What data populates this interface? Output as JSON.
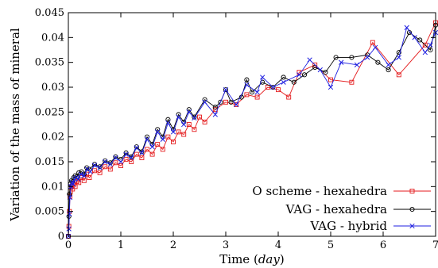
{
  "chart_data": {
    "type": "line",
    "title": "",
    "xlabel": "Time (day)",
    "xlabel_parts": {
      "prefix": "Time (",
      "unit": "day",
      "suffix": ")"
    },
    "ylabel": "Variation of the mass of mineral",
    "xlim": [
      0,
      7
    ],
    "ylim": [
      0,
      0.045
    ],
    "xticks": [
      0,
      1,
      2,
      3,
      4,
      5,
      6,
      7
    ],
    "xtick_labels": [
      "0",
      "1",
      "2",
      "3",
      "4",
      "5",
      "6",
      "7"
    ],
    "yticks": [
      0,
      0.005,
      0.01,
      0.015,
      0.02,
      0.025,
      0.03,
      0.035,
      0.04,
      0.045
    ],
    "ytick_labels": [
      "0",
      "0.005",
      "0.01",
      "0.015",
      "0.02",
      "0.025",
      "0.03",
      "0.035",
      "0.04",
      "0.045"
    ],
    "grid": false,
    "legend_position": "bottom-right",
    "series": [
      {
        "name": "O scheme - hexahedra",
        "color": "#e41a1c",
        "marker": "square",
        "points": [
          [
            0.0,
            0.0
          ],
          [
            0.01,
            0.002
          ],
          [
            0.02,
            0.005
          ],
          [
            0.03,
            0.008
          ],
          [
            0.04,
            0.009
          ],
          [
            0.06,
            0.01
          ],
          [
            0.08,
            0.0095
          ],
          [
            0.1,
            0.0105
          ],
          [
            0.13,
            0.01
          ],
          [
            0.16,
            0.011
          ],
          [
            0.2,
            0.0108
          ],
          [
            0.25,
            0.0118
          ],
          [
            0.3,
            0.0112
          ],
          [
            0.35,
            0.0125
          ],
          [
            0.4,
            0.0118
          ],
          [
            0.5,
            0.0132
          ],
          [
            0.6,
            0.0128
          ],
          [
            0.7,
            0.014
          ],
          [
            0.8,
            0.0135
          ],
          [
            0.9,
            0.0148
          ],
          [
            1.0,
            0.0142
          ],
          [
            1.1,
            0.0155
          ],
          [
            1.2,
            0.015
          ],
          [
            1.3,
            0.0165
          ],
          [
            1.4,
            0.0158
          ],
          [
            1.5,
            0.0175
          ],
          [
            1.6,
            0.0165
          ],
          [
            1.7,
            0.0185
          ],
          [
            1.8,
            0.0175
          ],
          [
            1.9,
            0.02
          ],
          [
            2.0,
            0.019
          ],
          [
            2.1,
            0.021
          ],
          [
            2.2,
            0.0205
          ],
          [
            2.3,
            0.0225
          ],
          [
            2.4,
            0.0215
          ],
          [
            2.5,
            0.024
          ],
          [
            2.6,
            0.023
          ],
          [
            2.8,
            0.0255
          ],
          [
            3.0,
            0.027
          ],
          [
            3.2,
            0.0265
          ],
          [
            3.4,
            0.0285
          ],
          [
            3.6,
            0.028
          ],
          [
            3.8,
            0.03
          ],
          [
            4.0,
            0.0295
          ],
          [
            4.2,
            0.028
          ],
          [
            4.4,
            0.033
          ],
          [
            4.7,
            0.0345
          ],
          [
            5.0,
            0.0315
          ],
          [
            5.4,
            0.031
          ],
          [
            5.8,
            0.039
          ],
          [
            6.3,
            0.0325
          ],
          [
            6.8,
            0.0385
          ],
          [
            7.0,
            0.043
          ]
        ]
      },
      {
        "name": "VAG - hexahedra",
        "color": "#000000",
        "marker": "circle",
        "points": [
          [
            0.0,
            0.0
          ],
          [
            0.01,
            0.004
          ],
          [
            0.02,
            0.0085
          ],
          [
            0.04,
            0.0105
          ],
          [
            0.06,
            0.0112
          ],
          [
            0.08,
            0.011
          ],
          [
            0.1,
            0.0118
          ],
          [
            0.13,
            0.0122
          ],
          [
            0.16,
            0.012
          ],
          [
            0.2,
            0.0128
          ],
          [
            0.25,
            0.013
          ],
          [
            0.3,
            0.0125
          ],
          [
            0.35,
            0.0138
          ],
          [
            0.4,
            0.0135
          ],
          [
            0.5,
            0.0145
          ],
          [
            0.6,
            0.014
          ],
          [
            0.7,
            0.0152
          ],
          [
            0.8,
            0.0148
          ],
          [
            0.9,
            0.016
          ],
          [
            1.0,
            0.0155
          ],
          [
            1.1,
            0.0168
          ],
          [
            1.2,
            0.016
          ],
          [
            1.3,
            0.018
          ],
          [
            1.4,
            0.017
          ],
          [
            1.5,
            0.02
          ],
          [
            1.6,
            0.0185
          ],
          [
            1.7,
            0.0215
          ],
          [
            1.8,
            0.02
          ],
          [
            1.9,
            0.0235
          ],
          [
            2.0,
            0.0215
          ],
          [
            2.1,
            0.0245
          ],
          [
            2.2,
            0.023
          ],
          [
            2.3,
            0.0255
          ],
          [
            2.4,
            0.024
          ],
          [
            2.6,
            0.0275
          ],
          [
            2.8,
            0.026
          ],
          [
            2.9,
            0.027
          ],
          [
            3.0,
            0.0295
          ],
          [
            3.1,
            0.027
          ],
          [
            3.3,
            0.028
          ],
          [
            3.4,
            0.0315
          ],
          [
            3.5,
            0.029
          ],
          [
            3.7,
            0.031
          ],
          [
            3.9,
            0.03
          ],
          [
            4.1,
            0.032
          ],
          [
            4.3,
            0.031
          ],
          [
            4.5,
            0.0325
          ],
          [
            4.7,
            0.034
          ],
          [
            4.9,
            0.033
          ],
          [
            5.1,
            0.036
          ],
          [
            5.4,
            0.036
          ],
          [
            5.7,
            0.0365
          ],
          [
            5.9,
            0.035
          ],
          [
            6.1,
            0.0335
          ],
          [
            6.3,
            0.037
          ],
          [
            6.5,
            0.041
          ],
          [
            6.7,
            0.0395
          ],
          [
            6.9,
            0.0375
          ],
          [
            7.0,
            0.0425
          ]
        ]
      },
      {
        "name": "VAG - hybrid",
        "color": "#1f1fe0",
        "marker": "cross",
        "points": [
          [
            0.0,
            0.0
          ],
          [
            0.01,
            0.0015
          ],
          [
            0.02,
            0.0045
          ],
          [
            0.03,
            0.0078
          ],
          [
            0.05,
            0.01
          ],
          [
            0.07,
            0.0108
          ],
          [
            0.09,
            0.0105
          ],
          [
            0.12,
            0.0115
          ],
          [
            0.15,
            0.0118
          ],
          [
            0.19,
            0.0115
          ],
          [
            0.24,
            0.0125
          ],
          [
            0.3,
            0.0122
          ],
          [
            0.36,
            0.0135
          ],
          [
            0.42,
            0.013
          ],
          [
            0.5,
            0.0143
          ],
          [
            0.6,
            0.0138
          ],
          [
            0.7,
            0.015
          ],
          [
            0.8,
            0.0145
          ],
          [
            0.9,
            0.0158
          ],
          [
            1.0,
            0.015
          ],
          [
            1.1,
            0.0165
          ],
          [
            1.2,
            0.0158
          ],
          [
            1.3,
            0.0178
          ],
          [
            1.4,
            0.0168
          ],
          [
            1.5,
            0.0195
          ],
          [
            1.6,
            0.018
          ],
          [
            1.7,
            0.021
          ],
          [
            1.8,
            0.0195
          ],
          [
            1.9,
            0.0228
          ],
          [
            2.0,
            0.021
          ],
          [
            2.1,
            0.024
          ],
          [
            2.2,
            0.0225
          ],
          [
            2.3,
            0.025
          ],
          [
            2.4,
            0.0238
          ],
          [
            2.6,
            0.027
          ],
          [
            2.8,
            0.0245
          ],
          [
            3.0,
            0.0295
          ],
          [
            3.2,
            0.0265
          ],
          [
            3.4,
            0.0305
          ],
          [
            3.6,
            0.029
          ],
          [
            3.7,
            0.032
          ],
          [
            3.9,
            0.03
          ],
          [
            4.1,
            0.031
          ],
          [
            4.4,
            0.0325
          ],
          [
            4.6,
            0.0355
          ],
          [
            4.8,
            0.0335
          ],
          [
            5.0,
            0.03
          ],
          [
            5.2,
            0.035
          ],
          [
            5.5,
            0.0345
          ],
          [
            5.7,
            0.036
          ],
          [
            5.85,
            0.038
          ],
          [
            6.1,
            0.0345
          ],
          [
            6.3,
            0.036
          ],
          [
            6.45,
            0.042
          ],
          [
            6.6,
            0.04
          ],
          [
            6.8,
            0.037
          ],
          [
            6.9,
            0.0385
          ],
          [
            7.0,
            0.041
          ]
        ]
      }
    ]
  }
}
